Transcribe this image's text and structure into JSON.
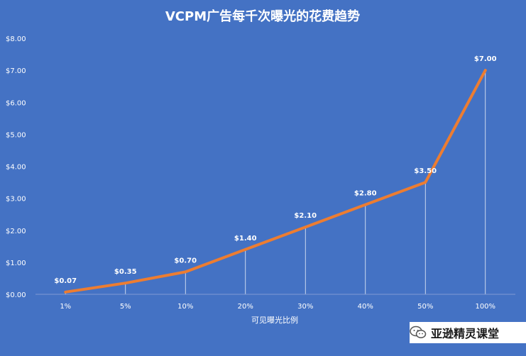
{
  "chart_data": {
    "type": "line",
    "title": "VCPM广告每千次曝光的花费趋势",
    "xlabel": "可见曝光比例",
    "ylabel": "",
    "categories": [
      "1%",
      "5%",
      "10%",
      "20%",
      "30%",
      "40%",
      "50%",
      "100%"
    ],
    "values": [
      0.07,
      0.35,
      0.7,
      1.4,
      2.1,
      2.8,
      3.5,
      7.0
    ],
    "data_labels": [
      "$0.07",
      "$0.35",
      "$0.70",
      "$1.40",
      "$2.10",
      "$2.80",
      "$3.50",
      "$7.00"
    ],
    "ylim": [
      0,
      8
    ],
    "yticks": [
      "$0.00",
      "$1.00",
      "$2.00",
      "$3.00",
      "$4.00",
      "$5.00",
      "$6.00",
      "$7.00",
      "$8.00"
    ],
    "grid": false,
    "drop_lines": true,
    "colors": {
      "background": "#4472c4",
      "line": "#ed7d31",
      "text": "#ffffff",
      "drop_line": "#ffffff"
    }
  },
  "watermark": {
    "text": "亚逊精灵课堂",
    "icon": "wechat-icon"
  }
}
